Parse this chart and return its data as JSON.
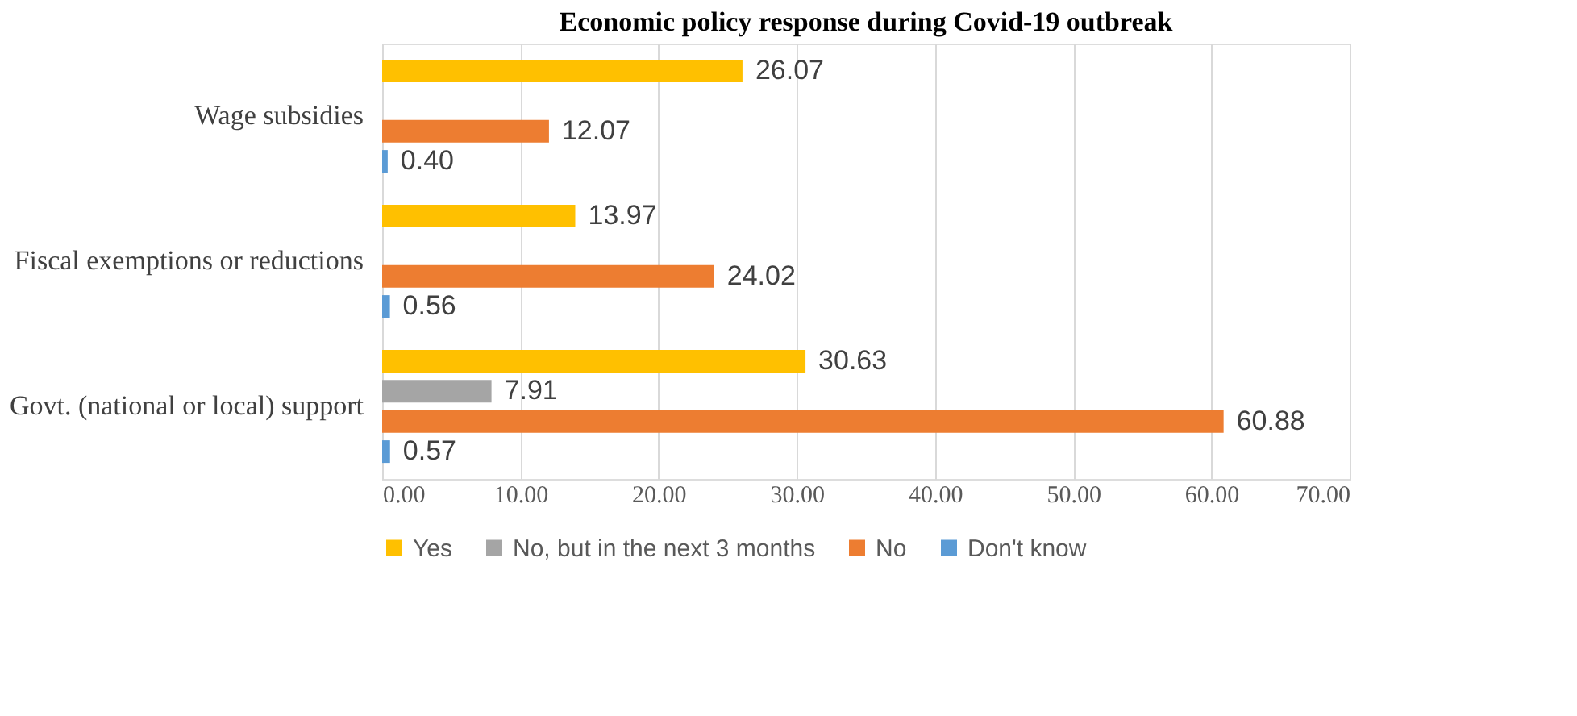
{
  "chart_data": {
    "type": "bar",
    "orientation": "horizontal",
    "title": "Economic policy response during  Covid-19 outbreak",
    "categories": [
      "Wage subsidies",
      "Fiscal exemptions or reductions",
      "Govt. (national or local) support"
    ],
    "series": [
      {
        "name": "Yes",
        "color": "#ffc000",
        "values": [
          26.07,
          13.97,
          30.63
        ],
        "value_labels": [
          "26.07",
          "13.97",
          "30.63"
        ]
      },
      {
        "name": "No, but in the next 3 months",
        "color": "#a5a5a5",
        "values": [
          null,
          null,
          7.91
        ],
        "value_labels": [
          null,
          null,
          "7.91"
        ]
      },
      {
        "name": "No",
        "color": "#ed7d31",
        "values": [
          12.07,
          24.02,
          60.88
        ],
        "value_labels": [
          "12.07",
          "24.02",
          "60.88"
        ]
      },
      {
        "name": "Don't know",
        "color": "#5b9bd5",
        "values": [
          0.4,
          0.56,
          0.57
        ],
        "value_labels": [
          "0.40",
          "0.56",
          "0.57"
        ]
      }
    ],
    "xlim": [
      0,
      70
    ],
    "xticks": [
      {
        "value": 0,
        "label": "0.00"
      },
      {
        "value": 10,
        "label": "10.00"
      },
      {
        "value": 20,
        "label": "20.00"
      },
      {
        "value": 30,
        "label": "30.00"
      },
      {
        "value": 40,
        "label": "40.00"
      },
      {
        "value": 50,
        "label": "50.00"
      },
      {
        "value": 60,
        "label": "60.00"
      },
      {
        "value": 70,
        "label": "70.00"
      }
    ],
    "grid": "x",
    "legend": "bottom"
  }
}
